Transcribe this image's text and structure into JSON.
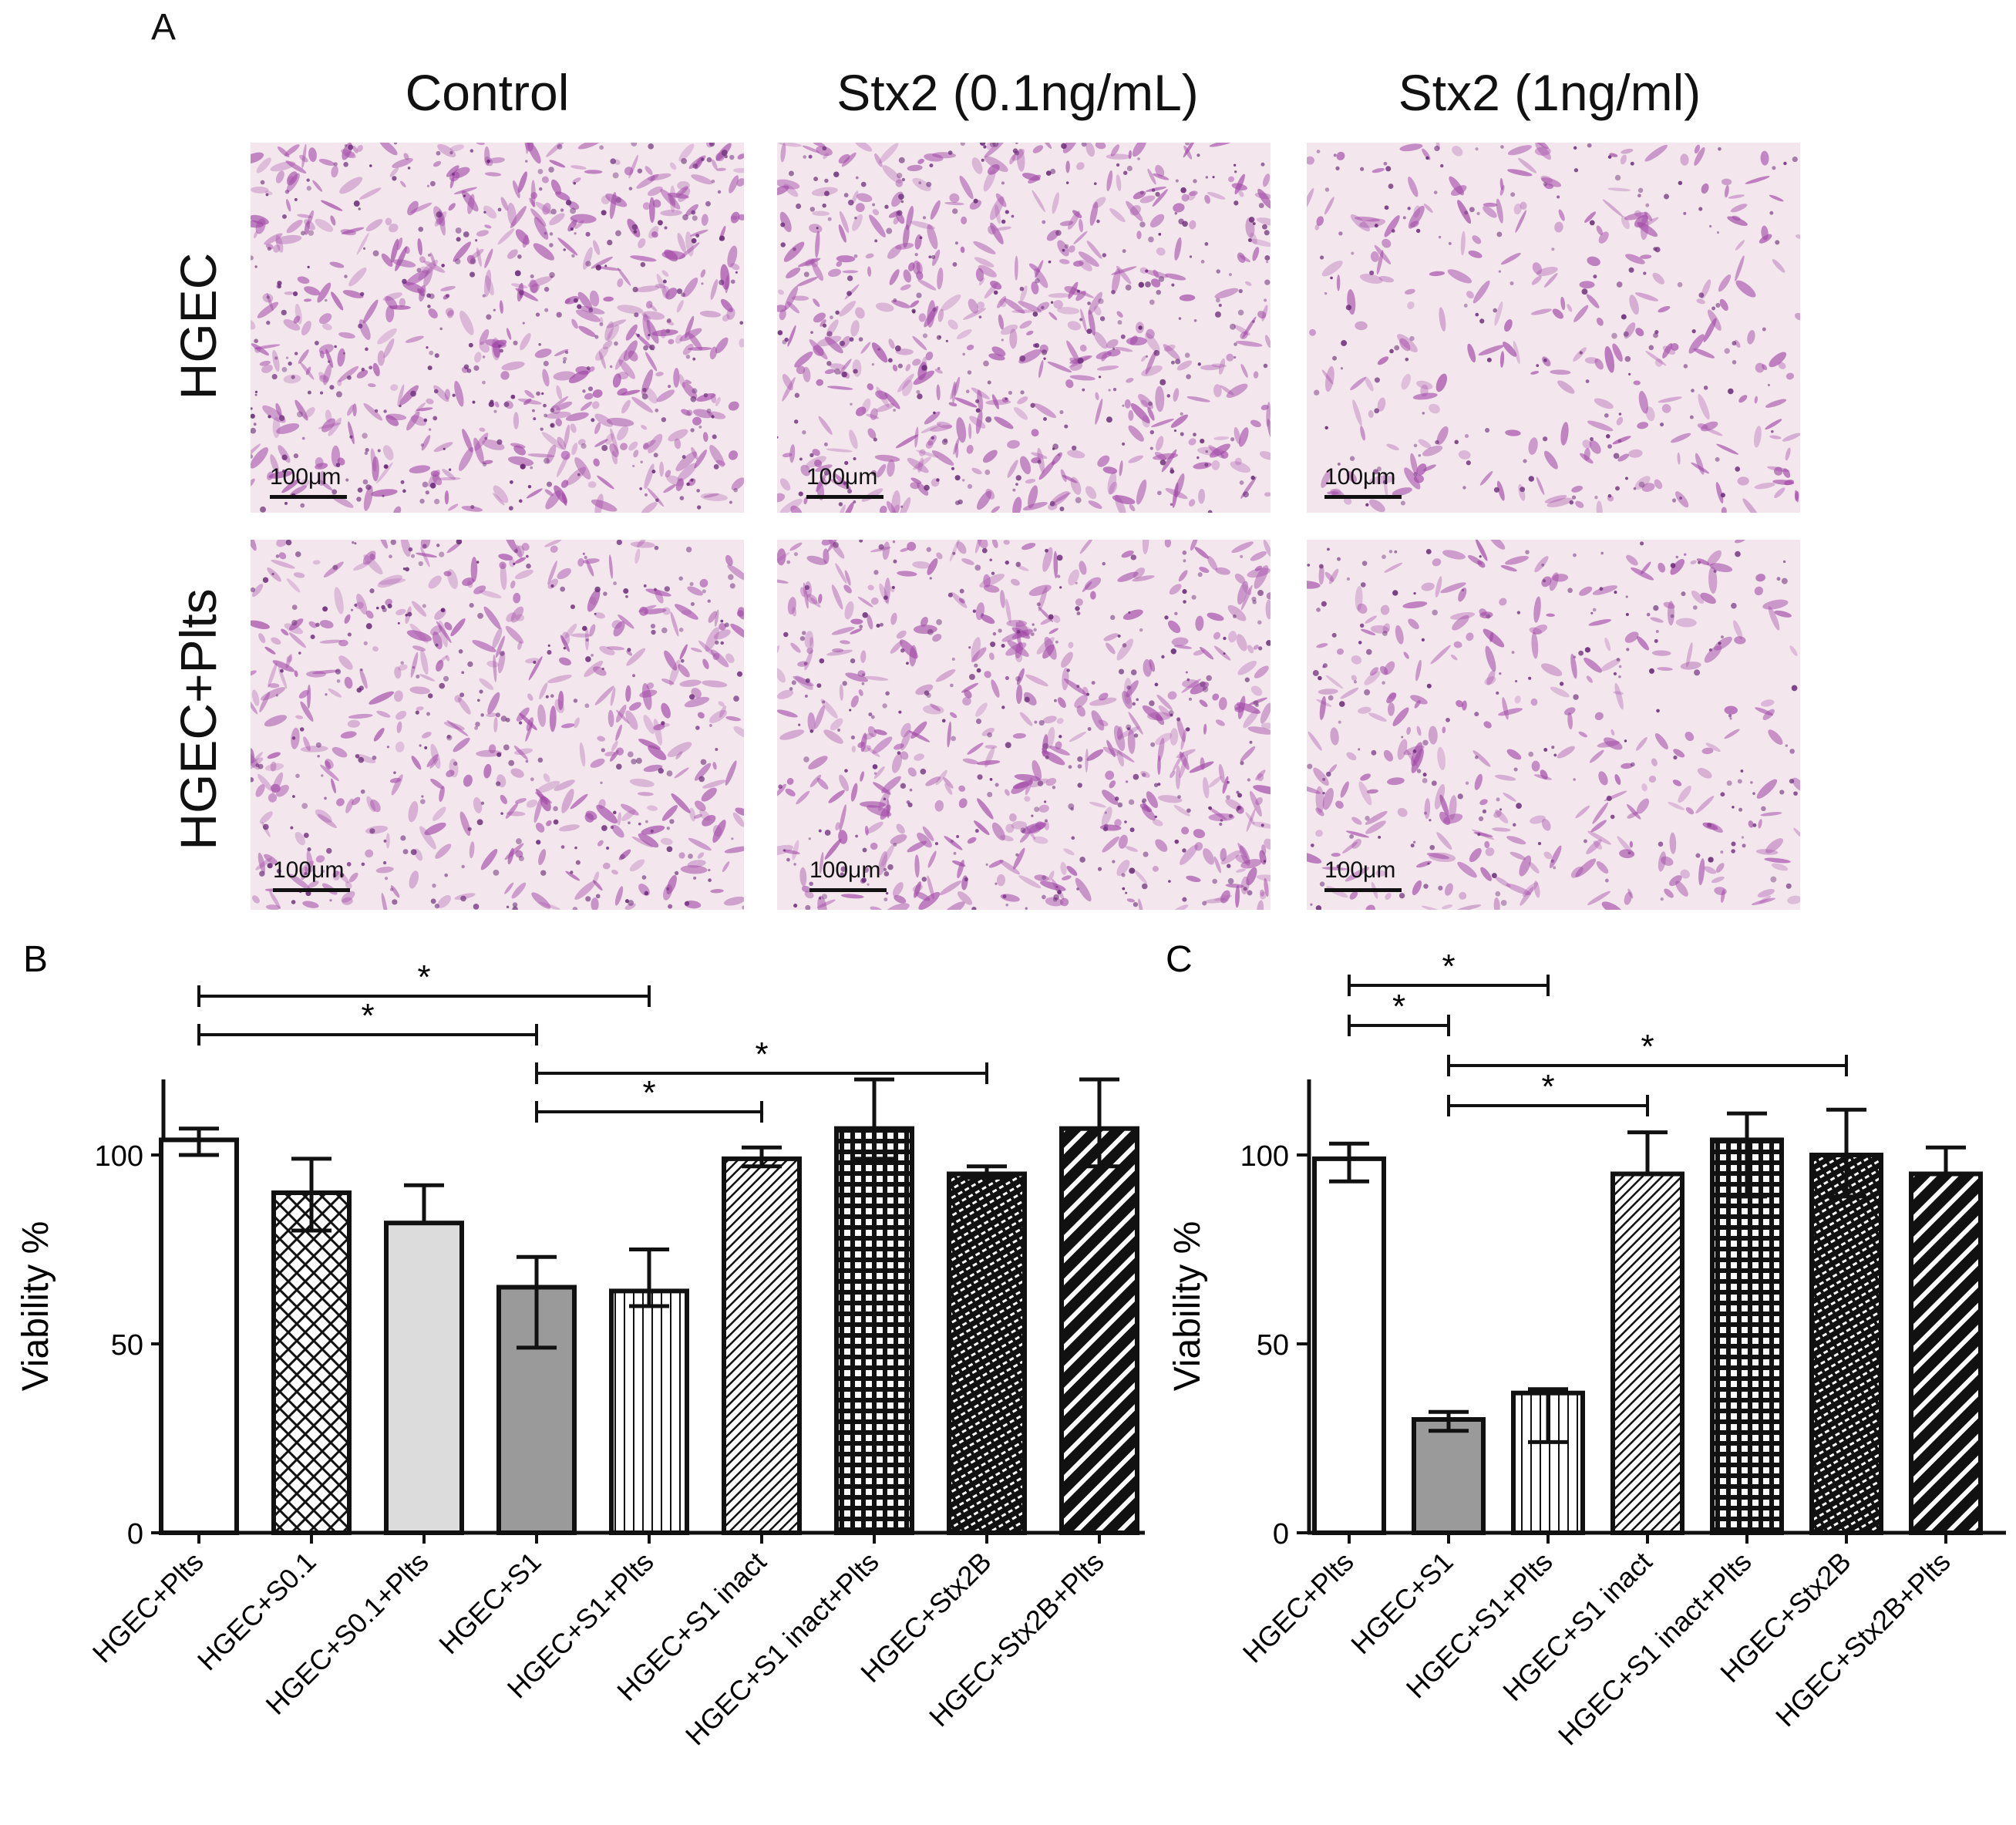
{
  "panel_a": {
    "letter": "A",
    "columns": [
      "Control",
      "Stx2 (0.1ng/mL)",
      "Stx2 (1ng/ml)"
    ],
    "rows": [
      "HGEC",
      "HGEC+Plts"
    ],
    "scale_label": "100μm"
  },
  "chart_data": [
    {
      "panel": "B",
      "type": "bar",
      "ylabel": "Viability %",
      "ylim": [
        0,
        120
      ],
      "yticks": [
        0,
        50,
        100
      ],
      "categories": [
        "HGEC+Plts",
        "HGEC+S0.1",
        "HGEC+S0.1+Plts",
        "HGEC+S1",
        "HGEC+S1+Plts",
        "HGEC+S1 inact",
        "HGEC+S1 inact+Plts",
        "HGEC+Stx2B",
        "HGEC+Stx2B+Plts"
      ],
      "values": [
        104,
        90,
        82,
        65,
        64,
        99,
        107,
        95,
        107
      ],
      "error_high": [
        107,
        99,
        92,
        73,
        75,
        102,
        120,
        97,
        120
      ],
      "error_low": [
        100,
        80,
        82,
        49,
        60,
        97,
        99,
        94,
        97
      ],
      "fills": [
        "open",
        "crosshatch",
        "lightgray",
        "gray",
        "vertical",
        "diagonal",
        "grid",
        "dense",
        "wide-diagonal"
      ],
      "significance": [
        {
          "from": 0,
          "to": 4,
          "label": "*"
        },
        {
          "from": 0,
          "to": 3,
          "label": "*"
        },
        {
          "from": 3,
          "to": 7,
          "label": "*"
        },
        {
          "from": 3,
          "to": 5,
          "label": "*"
        }
      ]
    },
    {
      "panel": "C",
      "type": "bar",
      "ylabel": "Viability %",
      "ylim": [
        0,
        120
      ],
      "yticks": [
        0,
        50,
        100
      ],
      "categories": [
        "HGEC+Plts",
        "HGEC+S1",
        "HGEC+S1+Plts",
        "HGEC+S1 inact",
        "HGEC+S1 inact+Plts",
        "HGEC+Stx2B",
        "HGEC+Stx2B+Plts"
      ],
      "values": [
        99,
        30,
        37,
        95,
        104,
        100,
        95
      ],
      "error_high": [
        103,
        32,
        38,
        106,
        111,
        112,
        102
      ],
      "error_low": [
        93,
        27,
        24,
        95,
        89,
        89,
        95
      ],
      "fills": [
        "open",
        "gray",
        "vertical",
        "diagonal",
        "grid",
        "dense",
        "wide-diagonal"
      ],
      "significance": [
        {
          "from": 0,
          "to": 2,
          "label": "*"
        },
        {
          "from": 0,
          "to": 1,
          "label": "*"
        },
        {
          "from": 1,
          "to": 5,
          "label": "*"
        },
        {
          "from": 1,
          "to": 3,
          "label": "*"
        }
      ]
    }
  ],
  "colors": {
    "stain_background": "#f3e6ec",
    "stain_cell": "#a24aa8",
    "gray_bar": "#9a9a9a",
    "lightgray_bar": "#dcdcdc"
  }
}
